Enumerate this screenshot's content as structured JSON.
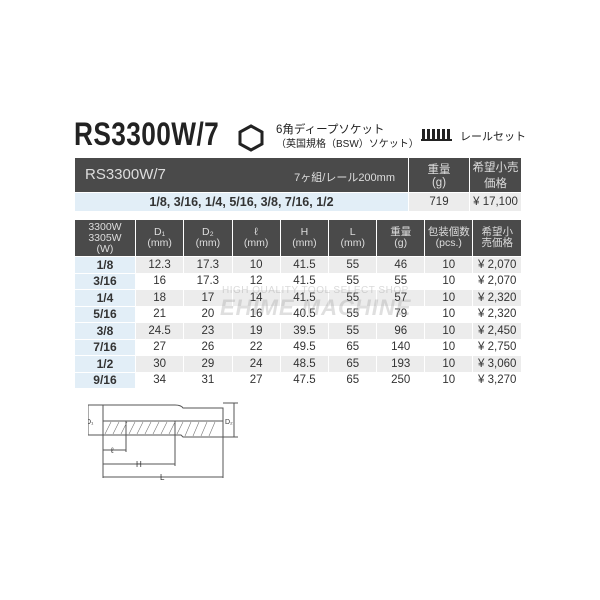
{
  "header": {
    "title": "RS3300W/7",
    "subtitle_line1": "6角ディープソケット",
    "subtitle_line2": "（英国規格（BSW）ソケット）",
    "set_label": "レールセット",
    "hex_icon": "hexagon-icon",
    "rail_icon": "rail-set-icon"
  },
  "set_table": {
    "name": "RS3300W/7",
    "desc": "7ヶ組/レール200mm",
    "weight_header": [
      "重量",
      "(g)"
    ],
    "price_header": [
      "希望小売",
      "価格"
    ],
    "sizes": "1/8, 3/16, 1/4, 5/16, 3/8, 7/16, 1/2",
    "weight": "719",
    "price": "¥ 17,100"
  },
  "spec_table": {
    "headers": [
      [
        "3300W",
        "3305W",
        "(W)"
      ],
      [
        "D₁",
        "(mm)"
      ],
      [
        "D₂",
        "(mm)"
      ],
      [
        "ℓ",
        "(mm)"
      ],
      [
        "H",
        "(mm)"
      ],
      [
        "L",
        "(mm)"
      ],
      [
        "重量",
        "(g)"
      ],
      [
        "包装個数",
        "(pcs.)"
      ],
      [
        "希望小",
        "売価格"
      ]
    ],
    "rows": [
      [
        "1/8",
        "12.3",
        "17.3",
        "10",
        "41.5",
        "55",
        "46",
        "10",
        "¥ 2,070"
      ],
      [
        "3/16",
        "16",
        "17.3",
        "12",
        "41.5",
        "55",
        "55",
        "10",
        "¥ 2,070"
      ],
      [
        "1/4",
        "18",
        "17",
        "14",
        "41.5",
        "55",
        "57",
        "10",
        "¥ 2,320"
      ],
      [
        "5/16",
        "21",
        "20",
        "16",
        "40.5",
        "55",
        "79",
        "10",
        "¥ 2,320"
      ],
      [
        "3/8",
        "24.5",
        "23",
        "19",
        "39.5",
        "55",
        "96",
        "10",
        "¥ 2,450"
      ],
      [
        "7/16",
        "27",
        "26",
        "22",
        "49.5",
        "65",
        "140",
        "10",
        "¥ 2,750"
      ],
      [
        "1/2",
        "30",
        "29",
        "24",
        "48.5",
        "65",
        "193",
        "10",
        "¥ 3,060"
      ],
      [
        "9/16",
        "34",
        "31",
        "27",
        "47.5",
        "65",
        "250",
        "10",
        "¥ 3,270"
      ]
    ]
  },
  "watermark": {
    "line1": "HIGH QUALITY TOOL SELECT SHOP",
    "line2": "EHIME MACHINE"
  },
  "diagram": {
    "labels": {
      "d1": "D₁",
      "d2": "D₂",
      "l_small": "ℓ",
      "h": "H",
      "l": "L"
    }
  }
}
